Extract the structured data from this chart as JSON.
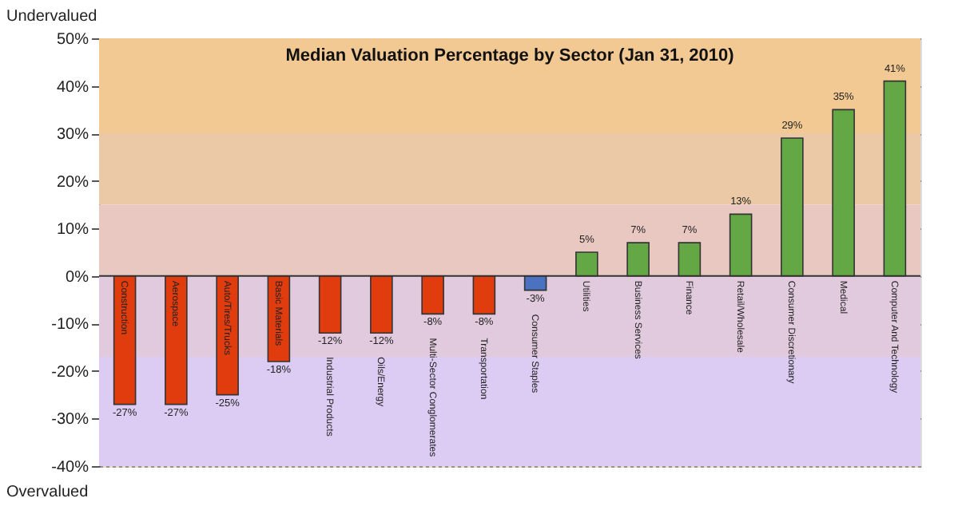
{
  "chart_data": {
    "type": "bar",
    "title": "Median Valuation Percentage by Sector (Jan 31, 2010)",
    "categories": [
      "Construction",
      "Aerospace",
      "Auto/Tires/Trucks",
      "Basic Materials",
      "Industrial Products",
      "Oils/Energy",
      "Multi-Sector Conglomerates",
      "Transportation",
      "Consumer Staples",
      "Utilities",
      "Business Services",
      "Finance",
      "Retail/Wholesale",
      "Consumer Discretionary",
      "Medical",
      "Computer And Technology"
    ],
    "values": [
      -27,
      -27,
      -25,
      -18,
      -12,
      -12,
      -8,
      -8,
      -3,
      5,
      7,
      7,
      13,
      29,
      35,
      41
    ],
    "value_labels": [
      "-27%",
      "-27%",
      "-25%",
      "-18%",
      "-12%",
      "-12%",
      "-8%",
      "-8%",
      "-3%",
      "5%",
      "7%",
      "7%",
      "13%",
      "29%",
      "35%",
      "41%"
    ],
    "colors": [
      "#e03c0e",
      "#e03c0e",
      "#e03c0e",
      "#e03c0e",
      "#e03c0e",
      "#e03c0e",
      "#e03c0e",
      "#e03c0e",
      "#4a72c0",
      "#63a845",
      "#63a845",
      "#63a845",
      "#63a845",
      "#63a845",
      "#63a845",
      "#63a845"
    ],
    "ylim": [
      -40,
      50
    ],
    "yticks": [
      {
        "value": -40,
        "label": "-40%"
      },
      {
        "value": -30,
        "label": "-30%"
      },
      {
        "value": -20,
        "label": "-20%"
      },
      {
        "value": -10,
        "label": "-10%"
      },
      {
        "value": 0,
        "label": "0%"
      },
      {
        "value": 10,
        "label": "10%"
      },
      {
        "value": 20,
        "label": "20%"
      },
      {
        "value": 30,
        "label": "30%"
      },
      {
        "value": 40,
        "label": "40%"
      },
      {
        "value": 50,
        "label": "50%"
      }
    ],
    "grid": "y",
    "bands": [
      {
        "axis": "y",
        "from": 30,
        "to": 50,
        "color": "#f2c993"
      },
      {
        "axis": "y",
        "from": 15,
        "to": 30,
        "color": "#ecc9a6"
      },
      {
        "axis": "y",
        "from": 0,
        "to": 15,
        "color": "#e9c8c1"
      },
      {
        "axis": "y",
        "from": -17,
        "to": 0,
        "color": "#e2cade"
      },
      {
        "axis": "y",
        "from": -40,
        "to": -17,
        "color": "#dccbf2"
      }
    ],
    "annotations": [
      "Undervalued",
      "Overvalued"
    ]
  }
}
